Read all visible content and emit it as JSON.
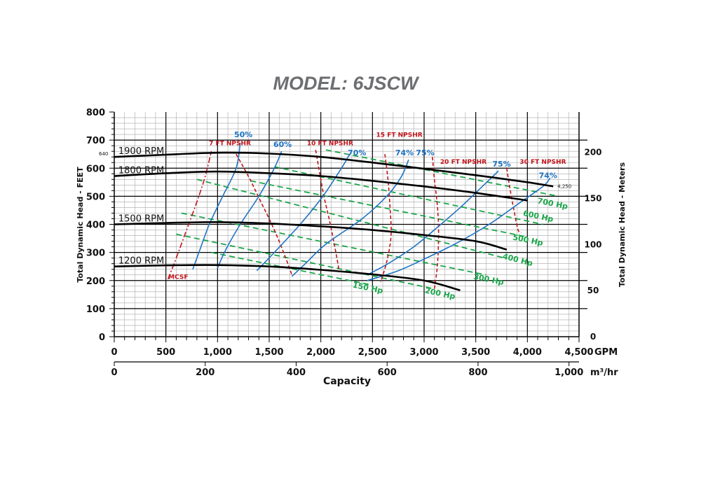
{
  "chart_data": {
    "type": "line",
    "title": "MODEL: 6JSCW",
    "xlabel": "Capacity",
    "x_unit": "GPM",
    "x2_unit": "m³/hr",
    "ylabel": "Total Dynamic Head - FEET",
    "y2label": "Total Dynamic Head - Meters",
    "xlim": [
      0,
      4500
    ],
    "ylim": [
      0,
      800
    ],
    "x_ticks": [
      "0",
      "500",
      "1,000",
      "1,500",
      "2,000",
      "2,500",
      "3,000",
      "3,500",
      "4,000",
      "4,500"
    ],
    "x2_ticks": [
      {
        "value": 0,
        "label": "0"
      },
      {
        "value": 200,
        "label": "200"
      },
      {
        "value": 400,
        "label": "400"
      },
      {
        "value": 600,
        "label": "600"
      },
      {
        "value": 800,
        "label": "800"
      },
      {
        "value": 1000,
        "label": "1,000"
      }
    ],
    "y_ticks": [
      "0",
      "100",
      "200",
      "300",
      "400",
      "500",
      "600",
      "700",
      "800"
    ],
    "y2_ticks": [
      {
        "value": 0,
        "label": "0"
      },
      {
        "value": 50,
        "label": "50"
      },
      {
        "value": 100,
        "label": "100"
      },
      {
        "value": 150,
        "label": "150"
      },
      {
        "value": 200,
        "label": "200"
      }
    ],
    "grid": true,
    "head_curves": [
      {
        "name": "1900 RPM",
        "x": [
          0,
          500,
          1000,
          1500,
          2000,
          2500,
          3000,
          3500,
          4000,
          4250
        ],
        "y": [
          640,
          648,
          655,
          652,
          640,
          620,
          598,
          575,
          550,
          535
        ]
      },
      {
        "name": "1800 RPM",
        "x": [
          0,
          500,
          1000,
          1500,
          2000,
          2500,
          3000,
          3500,
          4000
        ],
        "y": [
          572,
          582,
          588,
          582,
          572,
          555,
          535,
          512,
          485
        ]
      },
      {
        "name": "1500 RPM",
        "x": [
          0,
          500,
          1000,
          1500,
          2000,
          2500,
          3000,
          3500,
          3800
        ],
        "y": [
          400,
          405,
          408,
          403,
          393,
          380,
          362,
          340,
          310
        ]
      },
      {
        "name": "1200 RPM",
        "x": [
          0,
          500,
          1000,
          1500,
          2000,
          2500,
          3000,
          3350
        ],
        "y": [
          250,
          254,
          255,
          250,
          238,
          222,
          200,
          165
        ]
      }
    ],
    "efficiency_curves": [
      {
        "name": "50%",
        "x": [
          760,
          820,
          920,
          1050,
          1180,
          1220
        ],
        "y": [
          240,
          300,
          400,
          500,
          600,
          690
        ]
      },
      {
        "name": "60%",
        "x": [
          1000,
          1080,
          1220,
          1400,
          1550,
          1620
        ],
        "y": [
          245,
          310,
          400,
          500,
          600,
          660
        ]
      },
      {
        "name": "70%",
        "x": [
          1380,
          1550,
          1800,
          2020,
          2200,
          2280
        ],
        "y": [
          235,
          300,
          400,
          500,
          600,
          650
        ]
      },
      {
        "name": "74%",
        "x": [
          1720,
          1850,
          2050,
          2400,
          2650,
          2780,
          2850
        ],
        "y": [
          215,
          260,
          330,
          420,
          505,
          570,
          630
        ]
      },
      {
        "name": "75%",
        "x": [
          2450,
          2650,
          2900,
          3130,
          3350,
          3550,
          3720
        ],
        "y": [
          220,
          260,
          320,
          390,
          460,
          530,
          590
        ]
      },
      {
        "name": "74%",
        "x": [
          2450,
          2750,
          3050,
          3350,
          3650,
          3900,
          4150,
          4220
        ],
        "y": [
          200,
          235,
          285,
          340,
          405,
          470,
          535,
          565
        ]
      }
    ],
    "efficiency_labels": [
      {
        "text": "50%",
        "x": 1250,
        "y": 710
      },
      {
        "text": "60%",
        "x": 1630,
        "y": 675
      },
      {
        "text": "70%",
        "x": 2350,
        "y": 645
      },
      {
        "text": "74%",
        "x": 2810,
        "y": 645
      },
      {
        "text": "75%",
        "x": 3010,
        "y": 645
      },
      {
        "text": "75%",
        "x": 3750,
        "y": 605
      },
      {
        "text": "74%",
        "x": 4200,
        "y": 565
      }
    ],
    "npshr_curves": [
      {
        "name": "7 FT NPSHR",
        "x": [
          1180,
          1300,
          1420,
          1550,
          1650,
          1720
        ],
        "y": [
          650,
          570,
          480,
          380,
          290,
          220
        ]
      },
      {
        "name": "10 FT NPSHR",
        "x": [
          1950,
          1990,
          2030,
          2080,
          2130,
          2180
        ],
        "y": [
          665,
          580,
          500,
          420,
          330,
          230
        ]
      },
      {
        "name": "15 FT NPSHR",
        "x": [
          2620,
          2650,
          2670,
          2680,
          2640,
          2580
        ],
        "y": [
          650,
          560,
          460,
          360,
          270,
          195
        ]
      },
      {
        "name": "20 FT NPSHR",
        "x": [
          3080,
          3100,
          3130,
          3140,
          3130,
          3100
        ],
        "y": [
          640,
          560,
          460,
          370,
          260,
          170
        ]
      },
      {
        "name": "30 FT NPSHR",
        "x": [
          3800,
          3830,
          3870,
          3910,
          3940
        ],
        "y": [
          600,
          530,
          450,
          380,
          370
        ]
      },
      {
        "name": "MCSF",
        "x": [
          520,
          600,
          700,
          800,
          880,
          940
        ],
        "y": [
          205,
          280,
          380,
          480,
          570,
          660
        ]
      }
    ],
    "npshr_labels": [
      {
        "text": "7 FT NPSHR",
        "x": 1120,
        "y": 682
      },
      {
        "text": "10 FT NPSHR",
        "x": 2090,
        "y": 682
      },
      {
        "text": "15 FT NPSHR",
        "x": 2760,
        "y": 712
      },
      {
        "text": "20 FT NPSHR",
        "x": 3380,
        "y": 615
      },
      {
        "text": "30 FT NPSHR",
        "x": 4150,
        "y": 615
      },
      {
        "text": "MCSF",
        "x": 620,
        "y": 205
      }
    ],
    "horsepower_lines": [
      {
        "name": "700 Hp",
        "x": [
          2050,
          4300
        ],
        "y": [
          665,
          500
        ]
      },
      {
        "name": "600 Hp",
        "x": [
          1550,
          4150
        ],
        "y": [
          605,
          400
        ]
      },
      {
        "name": "500 Hp",
        "x": [
          1320,
          4000
        ],
        "y": [
          555,
          355
        ]
      },
      {
        "name": "400 Hp",
        "x": [
          800,
          3780
        ],
        "y": [
          560,
          280
        ]
      },
      {
        "name": "300 Hp",
        "x": [
          650,
          3600
        ],
        "y": [
          440,
          220
        ]
      },
      {
        "name": "200 Hp",
        "x": [
          600,
          3100
        ],
        "y": [
          365,
          170
        ]
      },
      {
        "name": "150 Hp",
        "x": [
          940,
          2480
        ],
        "y": [
          300,
          185
        ]
      }
    ],
    "horsepower_labels": [
      {
        "text": "700 Hp",
        "x": 4240,
        "y": 465
      },
      {
        "text": "600 Hp",
        "x": 4100,
        "y": 420
      },
      {
        "text": "500 Hp",
        "x": 4000,
        "y": 335
      },
      {
        "text": "400 Hp",
        "x": 3900,
        "y": 265
      },
      {
        "text": "300 Hp",
        "x": 3620,
        "y": 195
      },
      {
        "text": "200 Hp",
        "x": 3150,
        "y": 145
      },
      {
        "text": "150 Hp",
        "x": 2450,
        "y": 165
      }
    ],
    "annotations": [
      {
        "text": "640",
        "x": 0,
        "y": 640
      },
      {
        "text": "4,250",
        "x": 4250,
        "y": 535
      }
    ]
  },
  "colors": {
    "head": "#000000",
    "efficiency": "#1f73c2",
    "npshr": "#c0141b",
    "horsepower": "#1aa64a",
    "grid_major": "#000000",
    "grid_minor": "#a8a8a8",
    "title": "#6d6e71"
  }
}
